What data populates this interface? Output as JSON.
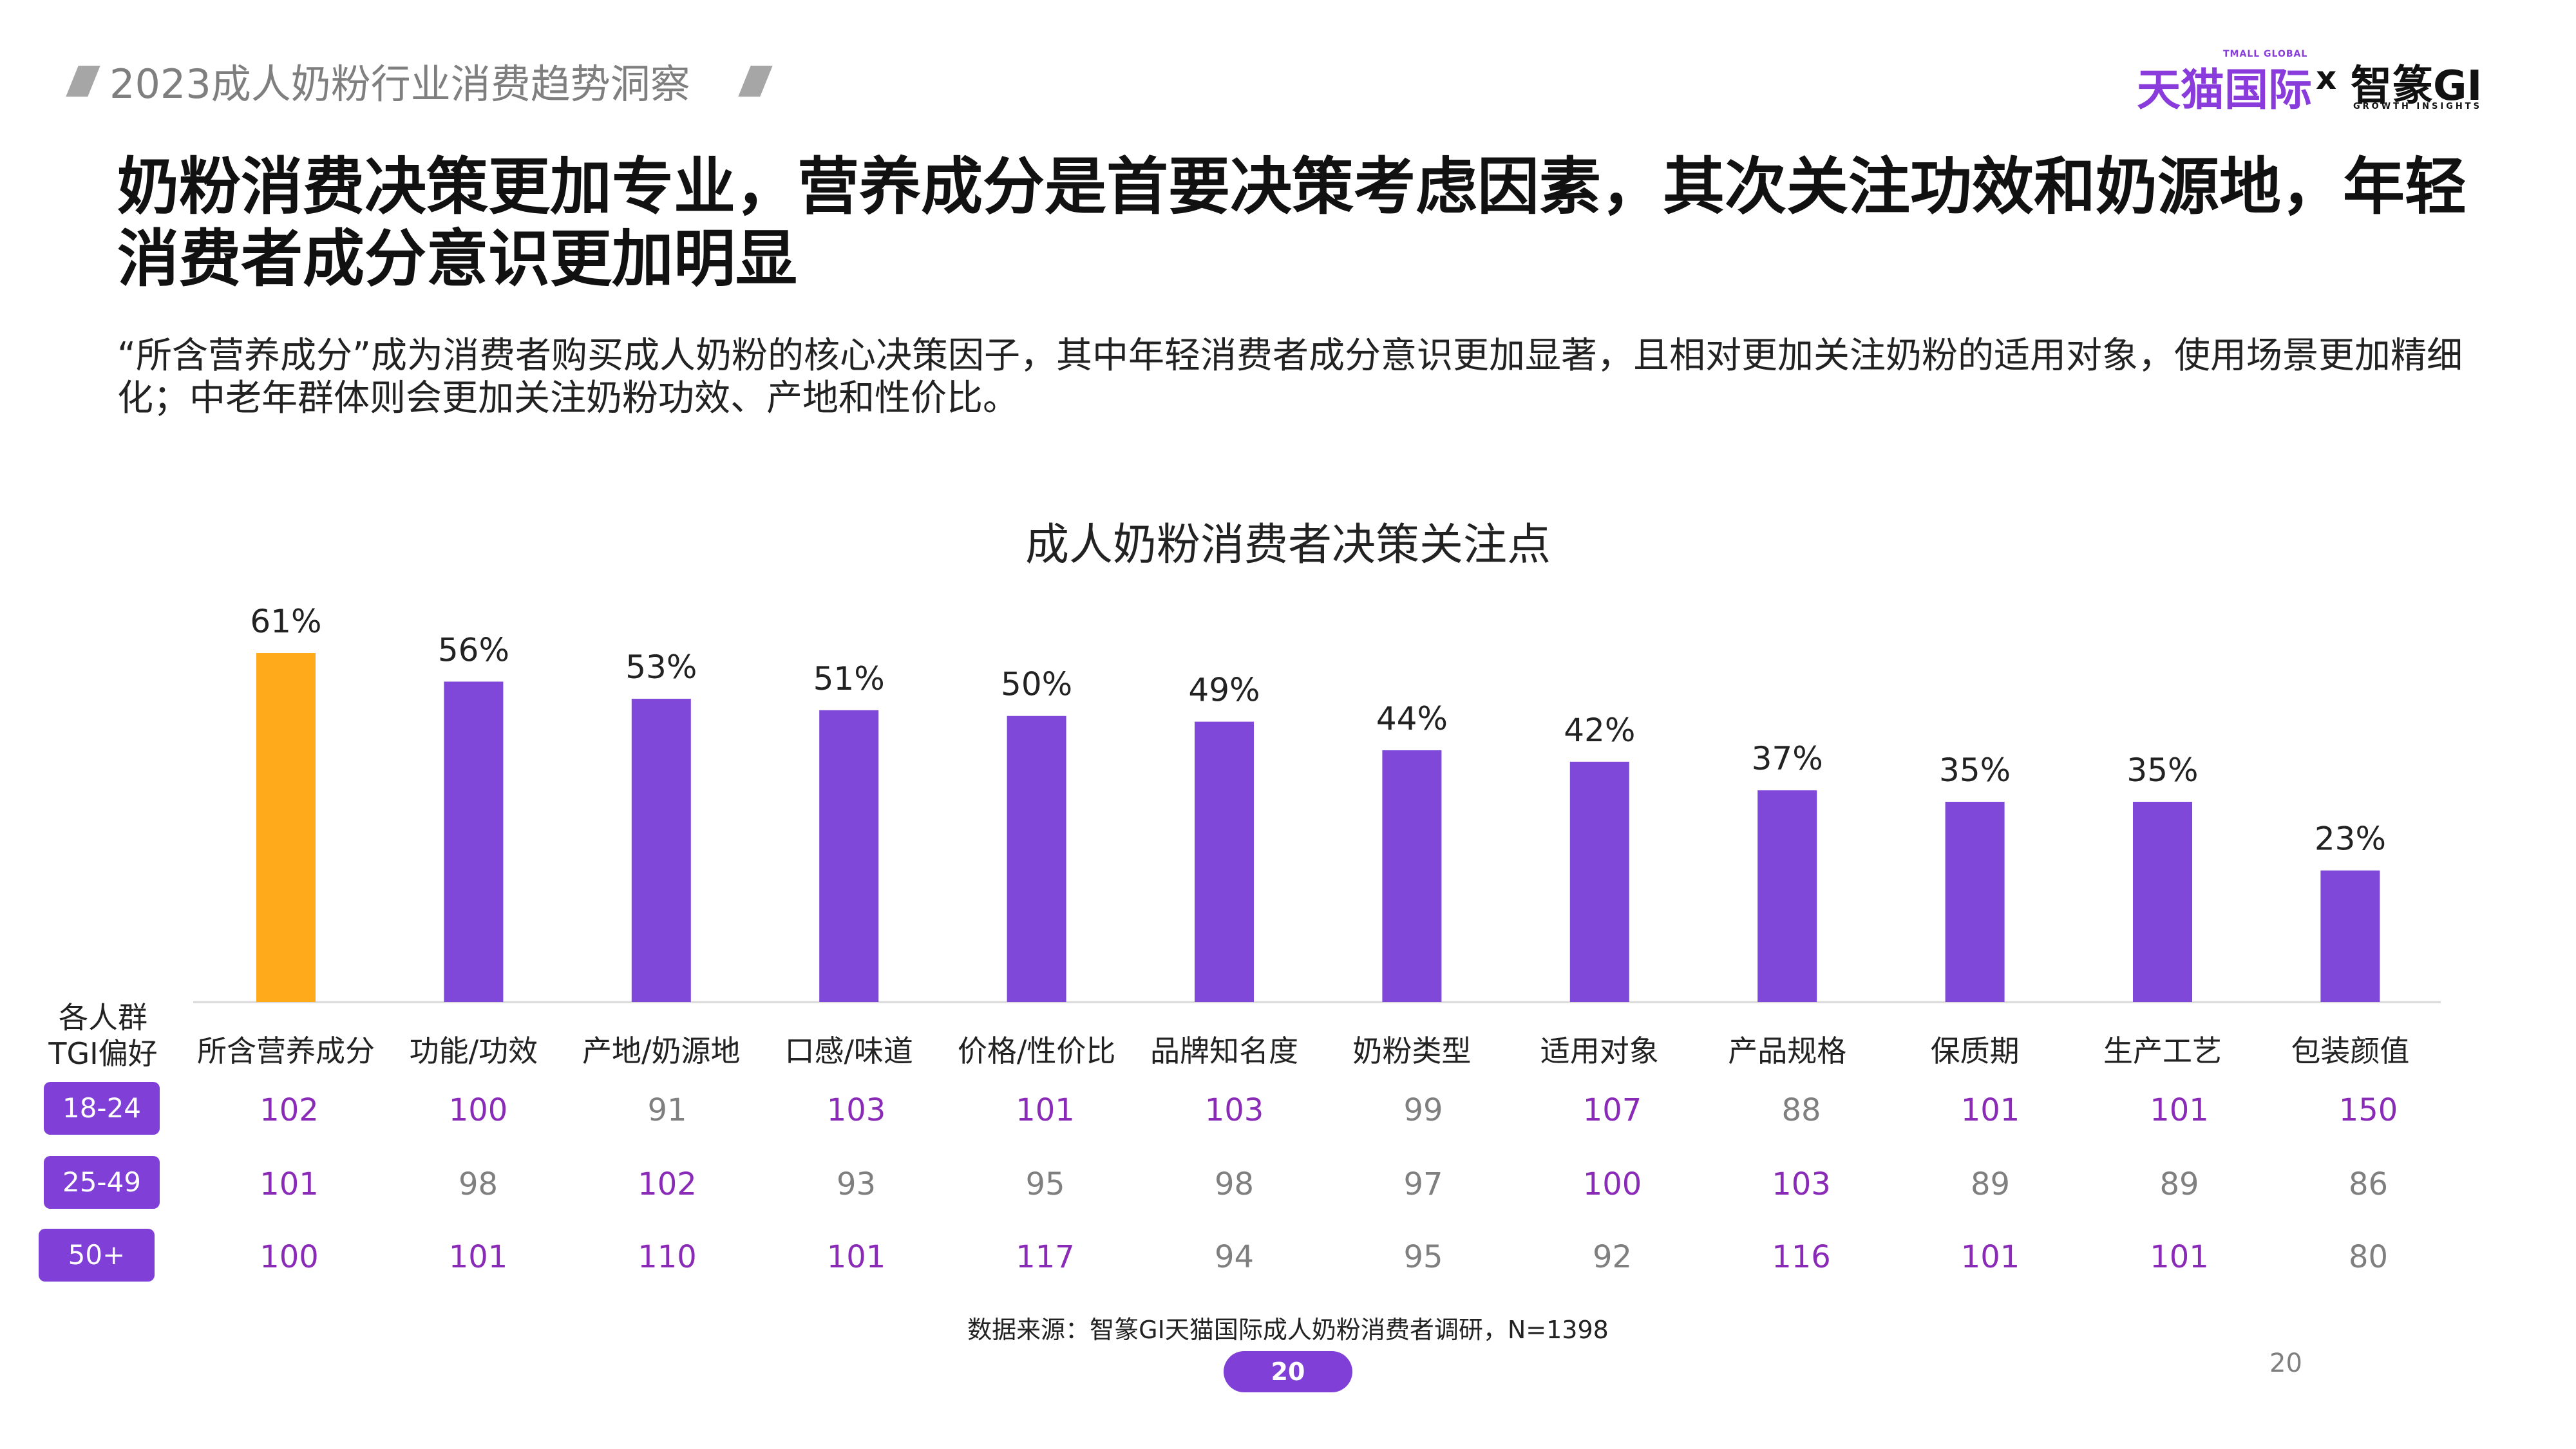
{
  "header": {
    "title": "2023成人奶粉行业消费趋势洞察",
    "logo_tmall": "天猫国际",
    "logo_tmall_sub": "TMALL GLOBAL",
    "logo_x": "x",
    "logo_gi": "智篆GI",
    "logo_gi_sub": "GROWTH INSIGHTS"
  },
  "main_title": "奶粉消费决策更加专业，营养成分是首要决策考虑因素，其次关注功效和奶源地，年轻消费者成分意识更加明显",
  "subtitle": "“所含营养成分”成为消费者购买成人奶粉的核心决策因子，其中年轻消费者成分意识更加显著，且相对更加关注奶粉的适用对象，使用场景更加精细化；中老年群体则会更加关注奶粉功效、产地和性价比。",
  "chart_data": {
    "type": "bar",
    "title": "成人奶粉消费者决策关注点",
    "categories": [
      "所含营养成分",
      "功能/功效",
      "产地/奶源地",
      "口感/味道",
      "价格/性价比",
      "品牌知名度",
      "奶粉类型",
      "适用对象",
      "产品规格",
      "保质期",
      "生产工艺",
      "包装颜值"
    ],
    "values": [
      61,
      56,
      53,
      51,
      50,
      49,
      44,
      42,
      37,
      35,
      35,
      23
    ],
    "value_labels": [
      "61%",
      "56%",
      "53%",
      "51%",
      "50%",
      "49%",
      "44%",
      "42%",
      "37%",
      "35%",
      "35%",
      "23%"
    ],
    "ylim": [
      0,
      61
    ],
    "highlight_index": 0,
    "colors": {
      "highlight": "#FFAA1A",
      "bar": "#7F48D9",
      "axis": "#D9D9D9"
    },
    "grid": false
  },
  "tgi": {
    "header": "各人群\nTGI偏好",
    "rows": [
      {
        "label": "18-24",
        "values": [
          "102",
          "100",
          "91",
          "103",
          "101",
          "103",
          "99",
          "107",
          "88",
          "101",
          "101",
          "150"
        ]
      },
      {
        "label": "25-49",
        "values": [
          "101",
          "98",
          "102",
          "93",
          "95",
          "98",
          "97",
          "100",
          "103",
          "89",
          "89",
          "86"
        ]
      },
      {
        "label": "50+",
        "values": [
          "100",
          "101",
          "110",
          "101",
          "117",
          "94",
          "95",
          "92",
          "116",
          "101",
          "101",
          "80"
        ]
      }
    ],
    "colors": {
      "high": "#8A2BB8",
      "low": "#7F7F7F"
    }
  },
  "source": "数据来源：智篆GI天猫国际成人奶粉消费者调研，N=1398",
  "page_pill": "20",
  "page_number": "20"
}
